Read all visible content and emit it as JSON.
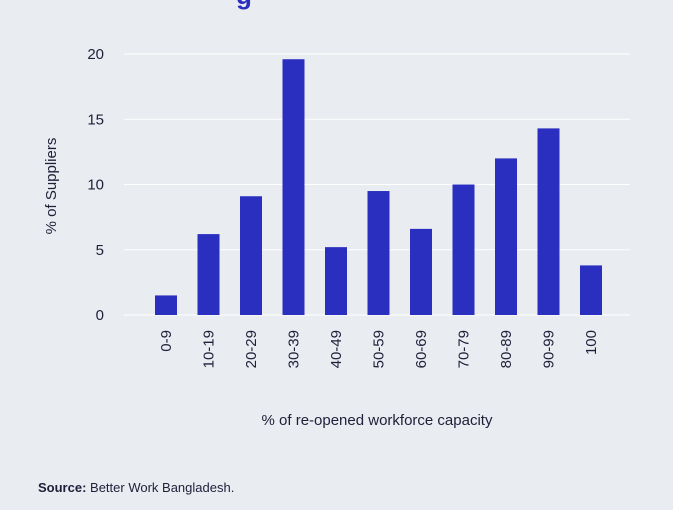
{
  "colors": {
    "background": "#e9ecf0",
    "bar": "#2b2fbf",
    "title": "#2b2fbf",
    "text": "#1f1f3a",
    "grid": "#ffffff"
  },
  "chart_data": {
    "type": "bar",
    "title_fragment": "g",
    "xlabel": "% of re-opened workforce capacity",
    "ylabel": "% of Suppliers",
    "categories": [
      "0-9",
      "10-19",
      "20-29",
      "30-39",
      "40-49",
      "50-59",
      "60-69",
      "70-79",
      "80-89",
      "90-99",
      "100"
    ],
    "values": [
      1.5,
      6.2,
      9.1,
      19.6,
      5.2,
      9.5,
      6.6,
      10.0,
      12.0,
      14.3,
      3.8
    ],
    "yticks": [
      0,
      5,
      10,
      15,
      20
    ],
    "ylim": [
      0,
      20
    ],
    "grid": true
  },
  "source": {
    "label": "Source:",
    "text": "Better Work Bangladesh."
  }
}
